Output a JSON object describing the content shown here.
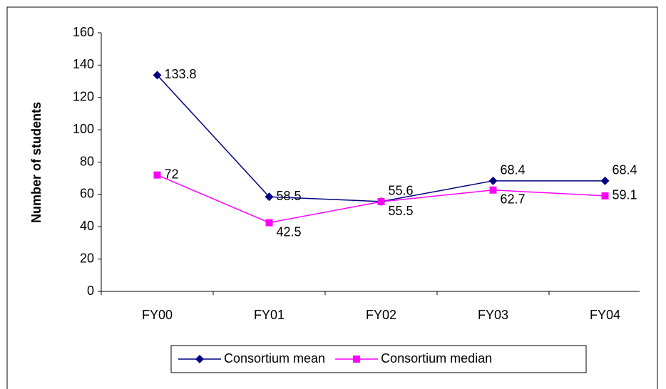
{
  "chart_data": {
    "type": "line",
    "y_label": "Number of students",
    "categories": [
      "FY00",
      "FY01",
      "FY02",
      "FY03",
      "FY04"
    ],
    "series": [
      {
        "name": "Consortium mean",
        "color": "#000080",
        "marker": "diamond",
        "values": [
          133.8,
          58.5,
          55.6,
          68.4,
          68.4
        ]
      },
      {
        "name": "Consortium median",
        "color": "#ff00ff",
        "marker": "square",
        "values": [
          72,
          42.5,
          55.5,
          62.7,
          59.1
        ]
      }
    ],
    "ylim": [
      0,
      160
    ],
    "yticks": [
      0,
      20,
      40,
      60,
      80,
      100,
      120,
      140,
      160
    ],
    "grid": false,
    "legend": "bottom"
  }
}
